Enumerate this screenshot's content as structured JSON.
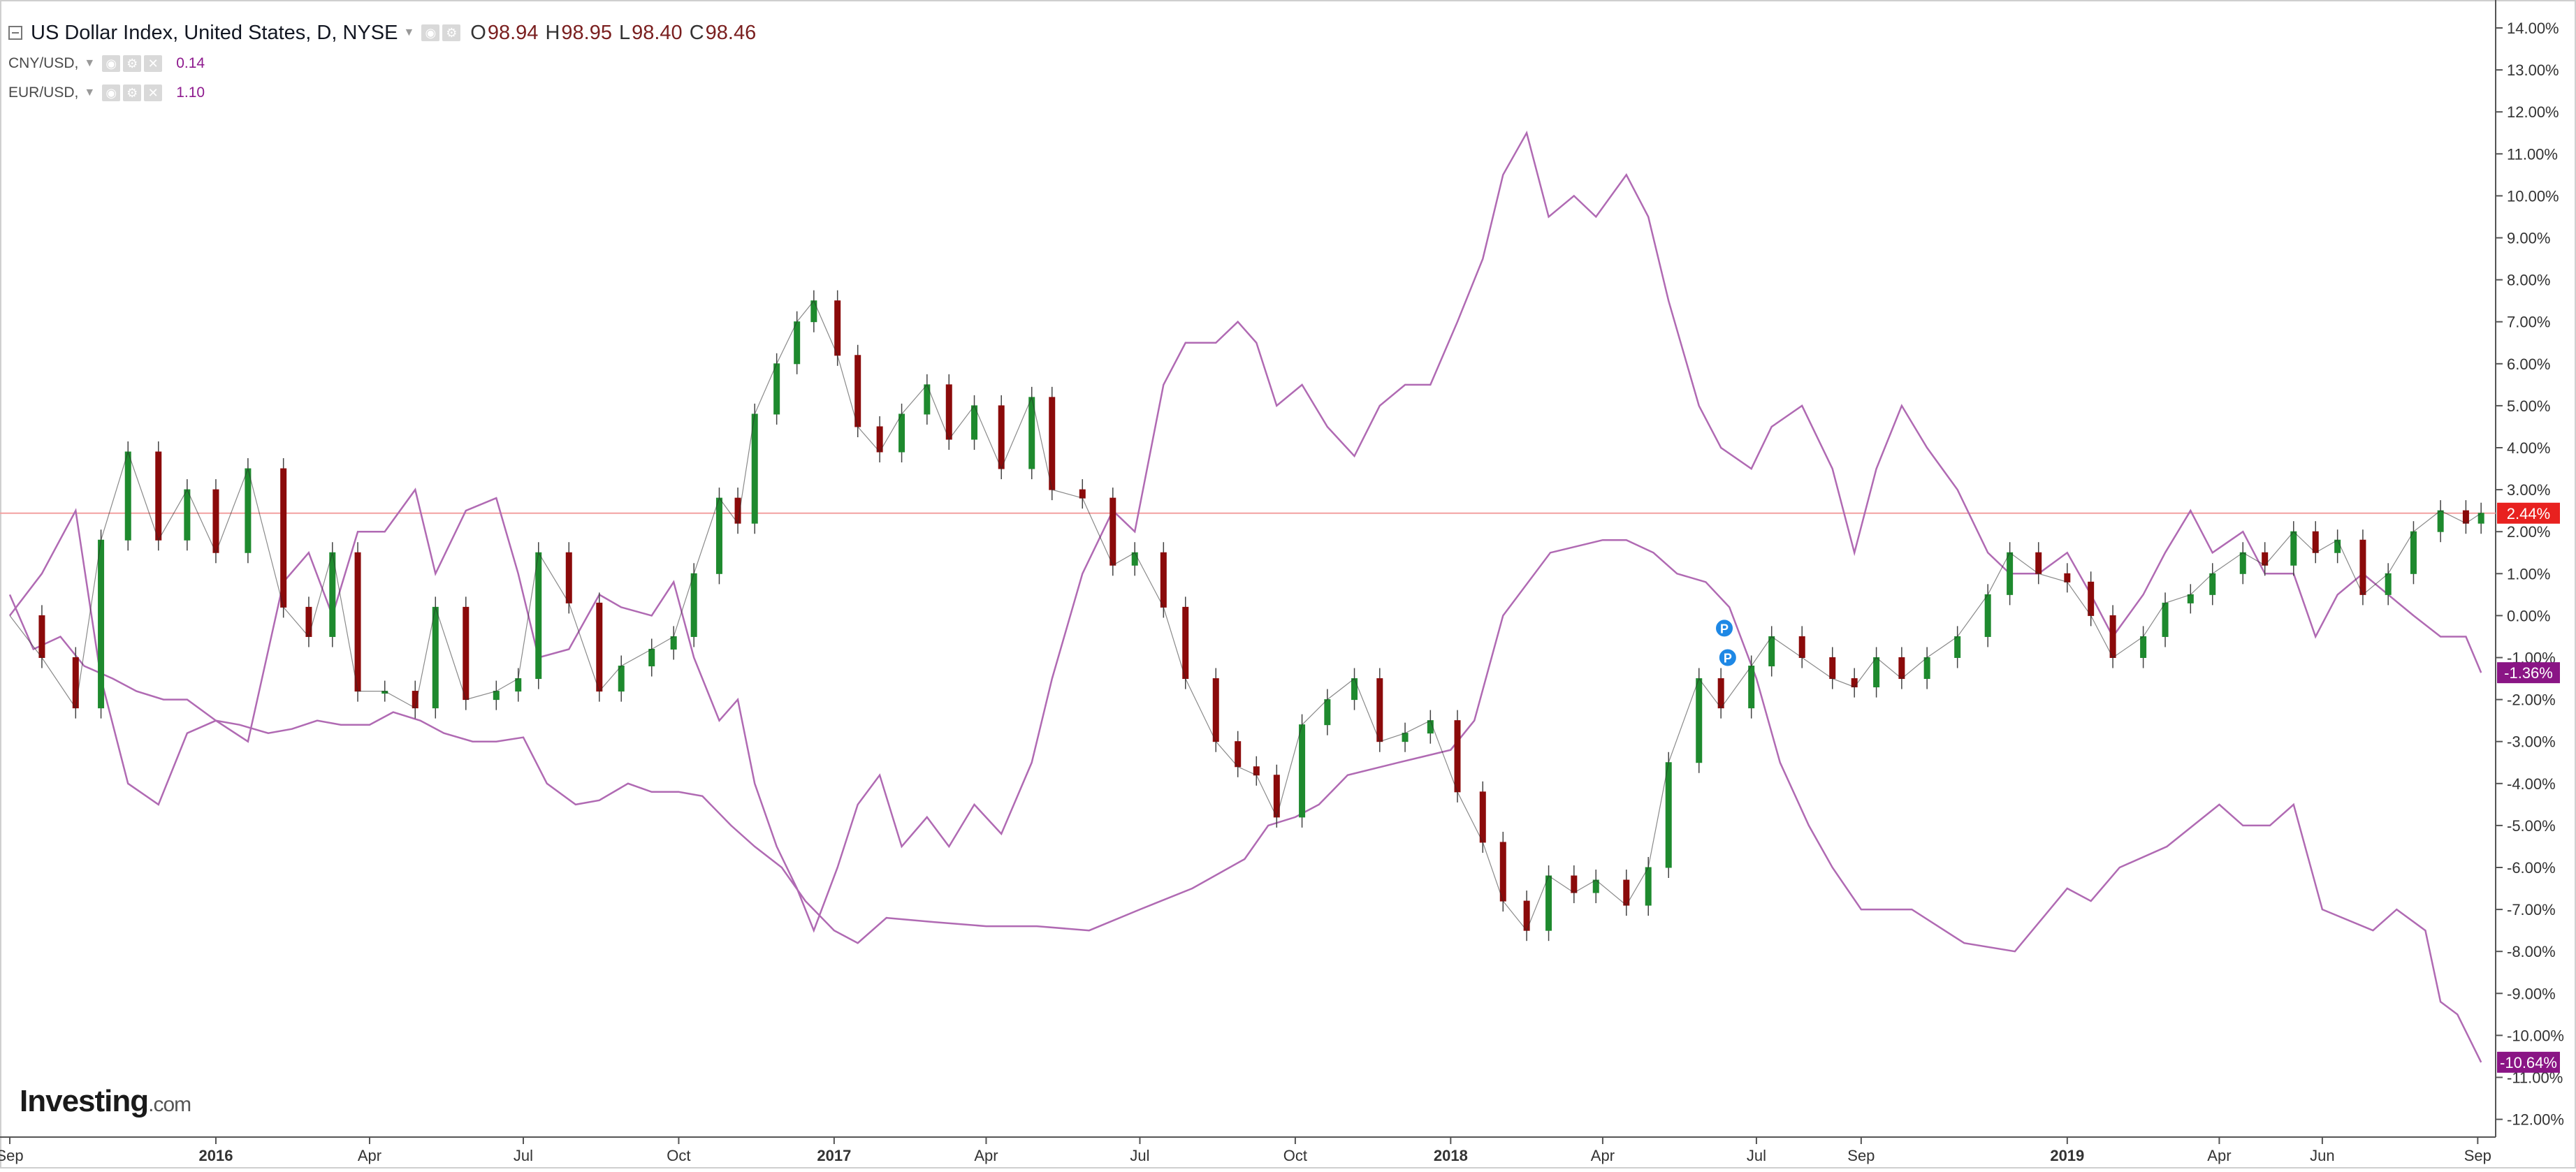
{
  "header": {
    "main_title": "US Dollar Index, United States, D, NYSE",
    "ohlc": [
      {
        "label": "O",
        "value": "98.94"
      },
      {
        "label": "H",
        "value": "98.95"
      },
      {
        "label": "L",
        "value": "98.40"
      },
      {
        "label": "C",
        "value": "98.46"
      }
    ],
    "series": [
      {
        "name": "CNY/USD,",
        "value": "0.14"
      },
      {
        "name": "EUR/USD,",
        "value": "1.10"
      }
    ]
  },
  "brand": {
    "name": "Investing",
    "suffix": ".com"
  },
  "colors": {
    "up": "#1e8a2e",
    "down": "#8b0a0a",
    "compare_line": "#b06ab3",
    "last_price_line": "#f2a0a0",
    "dxy_badge": "#e8211f",
    "cny_badge": "#8a1585",
    "eur_badge": "#8a1585",
    "marker": "#1e88e5",
    "grid": "none"
  },
  "chart_data": {
    "type": "line",
    "title": "US Dollar Index, United States, D, NYSE",
    "scale": "percent change from start",
    "ylim": [
      -12.5,
      14.5
    ],
    "y_ticks": [
      "14.00%",
      "13.00%",
      "12.00%",
      "11.00%",
      "10.00%",
      "9.00%",
      "8.00%",
      "7.00%",
      "6.00%",
      "5.00%",
      "4.00%",
      "3.00%",
      "2.00%",
      "1.00%",
      "0.00%",
      "-1.00%",
      "-2.00%",
      "-3.00%",
      "-4.00%",
      "-5.00%",
      "-6.00%",
      "-7.00%",
      "-8.00%",
      "-9.00%",
      "-10.00%",
      "-11.00%",
      "-12.00%"
    ],
    "x_ticks": [
      {
        "label": "Sep",
        "date": "2015-09-01",
        "bold": false
      },
      {
        "label": "2016",
        "date": "2016-01-01",
        "bold": true
      },
      {
        "label": "Apr",
        "date": "2016-04-01",
        "bold": false
      },
      {
        "label": "Jul",
        "date": "2016-07-01",
        "bold": false
      },
      {
        "label": "Oct",
        "date": "2016-10-01",
        "bold": false
      },
      {
        "label": "2017",
        "date": "2017-01-01",
        "bold": true
      },
      {
        "label": "Apr",
        "date": "2017-04-01",
        "bold": false
      },
      {
        "label": "Jul",
        "date": "2017-07-01",
        "bold": false
      },
      {
        "label": "Oct",
        "date": "2017-10-01",
        "bold": false
      },
      {
        "label": "2018",
        "date": "2018-01-01",
        "bold": true
      },
      {
        "label": "Apr",
        "date": "2018-04-01",
        "bold": false
      },
      {
        "label": "Jul",
        "date": "2018-07-01",
        "bold": false
      },
      {
        "label": "Sep",
        "date": "2018-09-01",
        "bold": false
      },
      {
        "label": "2019",
        "date": "2019-01-01",
        "bold": true
      },
      {
        "label": "Apr",
        "date": "2019-04-01",
        "bold": false
      },
      {
        "label": "Jun",
        "date": "2019-06-01",
        "bold": false
      },
      {
        "label": "Sep",
        "date": "2019-09-01",
        "bold": false
      }
    ],
    "x_range": [
      "2015-09-01",
      "2019-09-05"
    ],
    "series": [
      {
        "name": "US Dollar Index",
        "style": "candlestick",
        "last_label": "2.44%",
        "x": [
          "2015-09-01",
          "2015-09-20",
          "2015-10-10",
          "2015-10-25",
          "2015-11-10",
          "2015-11-28",
          "2015-12-15",
          "2016-01-01",
          "2016-01-20",
          "2016-02-10",
          "2016-02-25",
          "2016-03-10",
          "2016-03-25",
          "2016-04-10",
          "2016-04-28",
          "2016-05-10",
          "2016-05-28",
          "2016-06-15",
          "2016-06-28",
          "2016-07-10",
          "2016-07-28",
          "2016-08-15",
          "2016-08-28",
          "2016-09-15",
          "2016-09-28",
          "2016-10-10",
          "2016-10-25",
          "2016-11-05",
          "2016-11-15",
          "2016-11-28",
          "2016-12-10",
          "2016-12-20",
          "2017-01-03",
          "2017-01-15",
          "2017-01-28",
          "2017-02-10",
          "2017-02-25",
          "2017-03-10",
          "2017-03-25",
          "2017-04-10",
          "2017-04-28",
          "2017-05-10",
          "2017-05-28",
          "2017-06-15",
          "2017-06-28",
          "2017-07-15",
          "2017-07-28",
          "2017-08-15",
          "2017-08-28",
          "2017-09-08",
          "2017-09-20",
          "2017-10-05",
          "2017-10-20",
          "2017-11-05",
          "2017-11-20",
          "2017-12-05",
          "2017-12-20",
          "2018-01-05",
          "2018-01-20",
          "2018-02-01",
          "2018-02-15",
          "2018-02-28",
          "2018-03-15",
          "2018-03-28",
          "2018-04-15",
          "2018-04-28",
          "2018-05-10",
          "2018-05-28",
          "2018-06-10",
          "2018-06-28",
          "2018-07-10",
          "2018-07-28",
          "2018-08-15",
          "2018-08-28",
          "2018-09-10",
          "2018-09-25",
          "2018-10-10",
          "2018-10-28",
          "2018-11-15",
          "2018-11-28",
          "2018-12-15",
          "2019-01-01",
          "2019-01-15",
          "2019-01-28",
          "2019-02-15",
          "2019-02-28",
          "2019-03-15",
          "2019-03-28",
          "2019-04-15",
          "2019-04-28",
          "2019-05-15",
          "2019-05-28",
          "2019-06-10",
          "2019-06-25",
          "2019-07-10",
          "2019-07-25",
          "2019-08-10",
          "2019-08-25",
          "2019-09-03"
        ],
        "y": [
          0.0,
          -1.0,
          -2.2,
          1.8,
          3.9,
          1.8,
          3.0,
          1.5,
          3.5,
          0.2,
          -0.5,
          1.5,
          -1.8,
          -1.8,
          -2.2,
          0.2,
          -2.0,
          -1.8,
          -1.5,
          1.5,
          0.3,
          -1.8,
          -1.2,
          -0.8,
          -0.5,
          1.0,
          2.8,
          2.2,
          4.8,
          6.0,
          7.0,
          7.5,
          6.2,
          4.5,
          3.9,
          4.8,
          5.5,
          4.2,
          5.0,
          3.5,
          5.2,
          3.0,
          2.8,
          1.2,
          1.5,
          0.2,
          -1.5,
          -3.0,
          -3.6,
          -3.8,
          -4.8,
          -2.6,
          -2.0,
          -1.5,
          -3.0,
          -2.8,
          -2.5,
          -4.2,
          -5.4,
          -6.8,
          -7.5,
          -6.2,
          -6.6,
          -6.3,
          -6.9,
          -6.0,
          -3.5,
          -1.5,
          -2.2,
          -1.2,
          -0.5,
          -1.0,
          -1.5,
          -1.7,
          -1.0,
          -1.5,
          -1.0,
          -0.5,
          0.5,
          1.5,
          1.0,
          0.8,
          0.0,
          -1.0,
          -0.5,
          0.3,
          0.5,
          1.0,
          1.5,
          1.2,
          2.0,
          1.5,
          1.8,
          0.5,
          1.0,
          2.0,
          2.5,
          2.2,
          2.44
        ]
      },
      {
        "name": "CNY/USD,",
        "style": "line",
        "last_label": "-10.64%",
        "x": [
          "2015-09-01",
          "2015-09-15",
          "2015-10-01",
          "2015-10-15",
          "2015-11-01",
          "2015-11-15",
          "2015-12-01",
          "2015-12-15",
          "2016-01-01",
          "2016-01-15",
          "2016-02-01",
          "2016-02-15",
          "2016-03-01",
          "2016-03-15",
          "2016-04-01",
          "2016-04-15",
          "2016-05-01",
          "2016-05-15",
          "2016-06-01",
          "2016-06-15",
          "2016-07-01",
          "2016-07-15",
          "2016-08-01",
          "2016-08-15",
          "2016-09-01",
          "2016-09-15",
          "2016-10-01",
          "2016-10-15",
          "2016-11-01",
          "2016-11-15",
          "2016-12-01",
          "2016-12-15",
          "2017-01-01",
          "2017-01-15",
          "2017-02-01",
          "2017-03-01",
          "2017-04-01",
          "2017-05-01",
          "2017-06-01",
          "2017-07-01",
          "2017-08-01",
          "2017-09-01",
          "2017-09-15",
          "2017-10-01",
          "2017-10-15",
          "2017-11-01",
          "2017-12-01",
          "2018-01-01",
          "2018-01-15",
          "2018-02-01",
          "2018-03-01",
          "2018-04-01",
          "2018-04-15",
          "2018-05-01",
          "2018-05-15",
          "2018-06-01",
          "2018-06-15",
          "2018-07-01",
          "2018-07-15",
          "2018-08-01",
          "2018-08-15",
          "2018-09-01",
          "2018-10-01",
          "2018-11-01",
          "2018-12-01",
          "2019-01-01",
          "2019-01-15",
          "2019-02-01",
          "2019-03-01",
          "2019-04-01",
          "2019-04-15",
          "2019-05-01",
          "2019-05-15",
          "2019-06-01",
          "2019-07-01",
          "2019-07-15",
          "2019-08-01",
          "2019-08-10",
          "2019-08-20",
          "2019-09-03"
        ],
        "y": [
          0.5,
          -0.8,
          -0.5,
          -1.2,
          -1.5,
          -1.8,
          -2.0,
          -2.0,
          -2.5,
          -2.6,
          -2.8,
          -2.7,
          -2.5,
          -2.6,
          -2.6,
          -2.3,
          -2.5,
          -2.8,
          -3.0,
          -3.0,
          -2.9,
          -4.0,
          -4.5,
          -4.4,
          -4.0,
          -4.2,
          -4.2,
          -4.3,
          -5.0,
          -5.5,
          -6.0,
          -6.8,
          -7.5,
          -7.8,
          -7.2,
          -7.3,
          -7.4,
          -7.4,
          -7.5,
          -7.0,
          -6.5,
          -5.8,
          -5.0,
          -4.8,
          -4.5,
          -3.8,
          -3.5,
          -3.2,
          -2.5,
          0.0,
          1.5,
          1.8,
          1.8,
          1.5,
          1.0,
          0.8,
          0.2,
          -1.5,
          -3.5,
          -5.0,
          -6.0,
          -7.0,
          -7.0,
          -7.8,
          -8.0,
          -6.5,
          -6.8,
          -6.0,
          -5.5,
          -4.5,
          -5.0,
          -5.0,
          -4.5,
          -7.0,
          -7.5,
          -7.0,
          -7.5,
          -9.2,
          -9.5,
          -10.64
        ]
      },
      {
        "name": "EUR/USD,",
        "style": "line",
        "last_label": "-1.36%",
        "x": [
          "2015-09-01",
          "2015-09-20",
          "2015-10-10",
          "2015-10-25",
          "2015-11-10",
          "2015-11-28",
          "2015-12-15",
          "2016-01-01",
          "2016-01-20",
          "2016-02-10",
          "2016-02-25",
          "2016-03-10",
          "2016-03-25",
          "2016-04-10",
          "2016-04-28",
          "2016-05-10",
          "2016-05-28",
          "2016-06-15",
          "2016-06-28",
          "2016-07-10",
          "2016-07-28",
          "2016-08-15",
          "2016-08-28",
          "2016-09-15",
          "2016-09-28",
          "2016-10-10",
          "2016-10-25",
          "2016-11-05",
          "2016-11-15",
          "2016-11-28",
          "2016-12-10",
          "2016-12-20",
          "2017-01-03",
          "2017-01-15",
          "2017-01-28",
          "2017-02-10",
          "2017-02-25",
          "2017-03-10",
          "2017-03-25",
          "2017-04-10",
          "2017-04-28",
          "2017-05-10",
          "2017-05-28",
          "2017-06-15",
          "2017-06-28",
          "2017-07-15",
          "2017-07-28",
          "2017-08-15",
          "2017-08-28",
          "2017-09-08",
          "2017-09-20",
          "2017-10-05",
          "2017-10-20",
          "2017-11-05",
          "2017-11-20",
          "2017-12-05",
          "2017-12-20",
          "2018-01-05",
          "2018-01-20",
          "2018-02-01",
          "2018-02-15",
          "2018-02-28",
          "2018-03-15",
          "2018-03-28",
          "2018-04-15",
          "2018-04-28",
          "2018-05-10",
          "2018-05-28",
          "2018-06-10",
          "2018-06-28",
          "2018-07-10",
          "2018-07-28",
          "2018-08-15",
          "2018-08-28",
          "2018-09-10",
          "2018-09-25",
          "2018-10-10",
          "2018-10-28",
          "2018-11-15",
          "2018-11-28",
          "2018-12-15",
          "2019-01-01",
          "2019-01-15",
          "2019-01-28",
          "2019-02-15",
          "2019-02-28",
          "2019-03-15",
          "2019-03-28",
          "2019-04-15",
          "2019-04-28",
          "2019-05-15",
          "2019-05-28",
          "2019-06-10",
          "2019-06-25",
          "2019-07-10",
          "2019-07-25",
          "2019-08-10",
          "2019-08-25",
          "2019-09-03"
        ],
        "y": [
          0.0,
          1.0,
          2.5,
          -1.5,
          -4.0,
          -4.5,
          -2.8,
          -2.5,
          -3.0,
          0.8,
          1.5,
          0.0,
          2.0,
          2.0,
          3.0,
          1.0,
          2.5,
          2.8,
          1.0,
          -1.0,
          -0.8,
          0.5,
          0.2,
          0.0,
          0.8,
          -1.0,
          -2.5,
          -2.0,
          -4.0,
          -5.5,
          -6.5,
          -7.5,
          -6.0,
          -4.5,
          -3.8,
          -5.5,
          -4.8,
          -5.5,
          -4.5,
          -5.2,
          -3.5,
          -1.5,
          1.0,
          2.5,
          2.0,
          5.5,
          6.5,
          6.5,
          7.0,
          6.5,
          5.0,
          5.5,
          4.5,
          3.8,
          5.0,
          5.5,
          5.5,
          7.0,
          8.5,
          10.5,
          11.5,
          9.5,
          10.0,
          9.5,
          10.5,
          9.5,
          7.5,
          5.0,
          4.0,
          3.5,
          4.5,
          5.0,
          3.5,
          1.5,
          3.5,
          5.0,
          4.0,
          3.0,
          1.5,
          1.0,
          1.0,
          1.5,
          0.5,
          -0.5,
          0.5,
          1.5,
          2.5,
          1.5,
          2.0,
          1.0,
          1.0,
          -0.5,
          0.5,
          1.0,
          0.5,
          0.0,
          -0.5,
          -0.5,
          -1.36
        ]
      }
    ],
    "reference_line": {
      "label": "2.44%",
      "y": 2.44
    },
    "markers": [
      {
        "label": "P",
        "date": "2018-06-12",
        "y": -0.3
      },
      {
        "label": "P",
        "date": "2018-06-14",
        "y": -1.0
      }
    ],
    "xlabel": "",
    "ylabel": ""
  }
}
